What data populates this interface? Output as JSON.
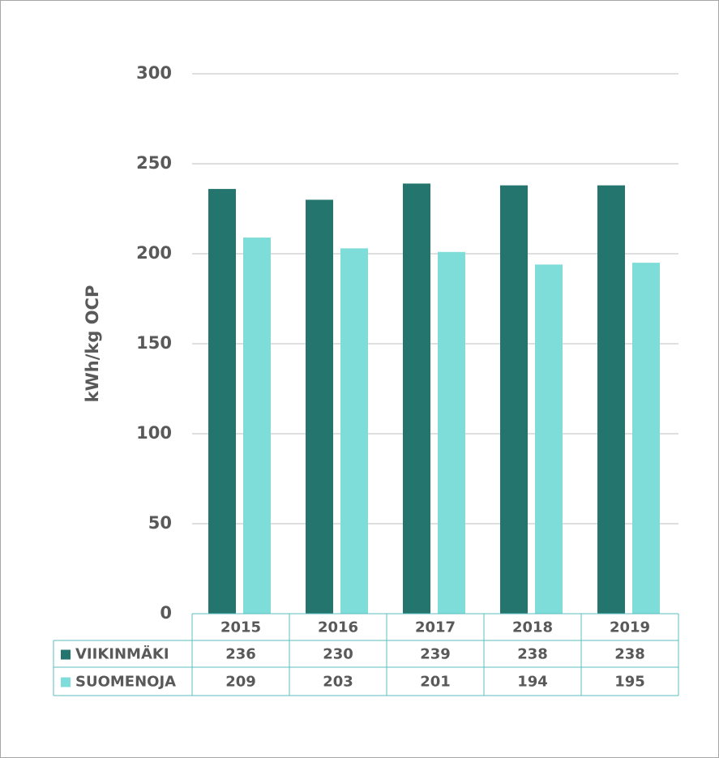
{
  "chart_data": {
    "type": "bar",
    "y_label": "kWh/kg OCP",
    "categories": [
      "2015",
      "2016",
      "2017",
      "2018",
      "2019"
    ],
    "series": [
      {
        "name": "VIIKINMÄKI",
        "color": "#25756f",
        "values": [
          236,
          230,
          239,
          238,
          238
        ]
      },
      {
        "name": "SUOMENOJA",
        "color": "#7fddd9",
        "values": [
          209,
          203,
          201,
          194,
          195
        ]
      }
    ],
    "ylim": [
      0,
      300
    ],
    "yticks": [
      0,
      50,
      100,
      150,
      200,
      250,
      300
    ],
    "grid": true,
    "data_table": true
  }
}
